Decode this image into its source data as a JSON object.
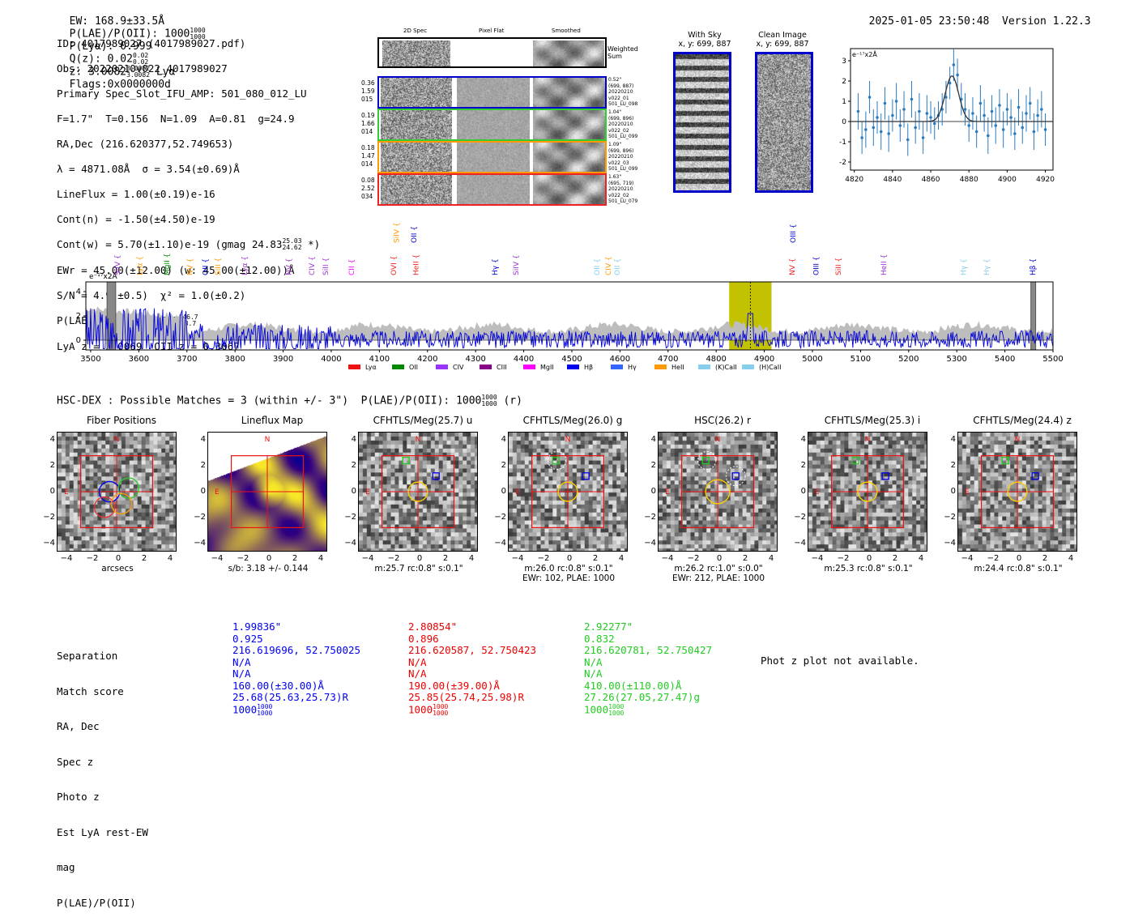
{
  "header": {
    "ew": "EW: 168.9±33.5Å",
    "plae_label": "P(LAE)/P(OII): 1000",
    "plae_hi": "1000",
    "plae_lo": "1000",
    "plya": "P(Lyα): 0.999",
    "qz_label": "Q(z): 0.02",
    "qz_hi": "0.02",
    "qz_lo": "0.02",
    "z_label": "z: 3.0082",
    "z_hi": "3.0082",
    "z_lo": "3.0082",
    "line": "Lyα",
    "flags": "Flags:0x0000000d",
    "timestamp": "2025-01-05 23:50:48",
    "version": "Version 1.22.3"
  },
  "info": {
    "id": "ID: 4017989027 (4017989027.pdf)",
    "obs": "Obs: 20220210v022_4017989027",
    "primary": "Primary Spec_Slot_IFU_AMP: 501_080_012_LU",
    "params": "F=1.7\"  T=0.156  N=1.09  A=0.81  g=24.9",
    "radec": "RA,Dec (216.620377,52.749653)",
    "lambda": "λ = 4871.08Å  σ = 3.54(±0.69)Å",
    "lineflux": "LineFlux = 1.00(±0.19)e-16",
    "contn": "Cont(n) = -1.50(±4.50)e-19",
    "contw": "Cont(w) = 5.70(±1.10)e-19 (gmag 24.83",
    "contw_hi": "25.03",
    "contw_lo": "24.62",
    "contw_end": " *)",
    "ewr": "EWr = 45.00(±12.00) (w: 45.00(±12.00))Å",
    "sn": "S/N = 4.9(±0.5)  χ² = 1.0(±0.2)",
    "plae": "P(LAE)/P(OII): 136.3",
    "plae_hi": "646.7",
    "plae_lo": "43.7",
    "lyaz": "LyA z = 3.0069  OII z = 0.3067"
  },
  "cutouts": {
    "col_labels": [
      "2D Spec",
      "Pixel Flat",
      "Smoothed"
    ],
    "weighted": [
      "Weighted",
      "Sum"
    ],
    "rows": [
      {
        "left": [
          "0.36",
          "1.59",
          "015"
        ],
        "right": [
          "0.52\"",
          "(699, 887)",
          "20220210",
          "v022_01",
          "501_LU_098"
        ],
        "color": "#0000cc"
      },
      {
        "left": [
          "0.19",
          "1.66",
          "014"
        ],
        "right": [
          "1.04\"",
          "(699, 896)",
          "20220210",
          "v022_02",
          "501_LU_099"
        ],
        "color": "#33cc33"
      },
      {
        "left": [
          "0.18",
          "1.47",
          "014"
        ],
        "right": [
          "1.09\"",
          "(699, 896)",
          "20220210",
          "v022_03",
          "501_LU_099"
        ],
        "color": "#ff9900"
      },
      {
        "left": [
          "0.08",
          "2.52",
          "034"
        ],
        "right": [
          "1.63\"",
          "(695, 719)",
          "20220210",
          "v022_02",
          "501_LU_079"
        ],
        "color": "#ee2222"
      }
    ],
    "with_sky": {
      "title": "With Sky",
      "coords": "x, y: 699, 887"
    },
    "clean": {
      "title": "Clean Image",
      "coords": "x, y: 699, 887"
    }
  },
  "zoom_chart": {
    "type": "scatter",
    "unit": "e⁻¹⁷x2Å",
    "xlim": [
      4818,
      4924
    ],
    "ylim": [
      -2.4,
      3.6
    ],
    "xticks": [
      4820,
      4840,
      4860,
      4880,
      4900,
      4920
    ],
    "yticks": [
      3,
      2,
      1,
      0,
      -1,
      -2
    ],
    "fit": {
      "center": 4871.1,
      "sigma": 3.54,
      "amp": 2.25
    },
    "x": [
      4822,
      4824,
      4826,
      4828,
      4830,
      4832,
      4834,
      4836,
      4838,
      4840,
      4842,
      4844,
      4846,
      4848,
      4850,
      4852,
      4854,
      4856,
      4858,
      4860,
      4862,
      4864,
      4866,
      4868,
      4870,
      4872,
      4874,
      4876,
      4878,
      4880,
      4882,
      4884,
      4886,
      4888,
      4890,
      4892,
      4894,
      4896,
      4898,
      4900,
      4902,
      4904,
      4906,
      4908,
      4910,
      4912,
      4914,
      4916,
      4918,
      4920
    ],
    "y": [
      0.5,
      -0.8,
      -0.4,
      1.2,
      -0.3,
      0.2,
      -0.5,
      0.9,
      -0.6,
      0.3,
      1.0,
      -0.2,
      0.6,
      -0.9,
      1.1,
      -0.3,
      0.5,
      -0.8,
      0.4,
      0.2,
      -0.1,
      0.3,
      0.6,
      1.2,
      1.9,
      2.8,
      2.3,
      1.1,
      0.6,
      -0.2,
      0.4,
      -0.5,
      0.9,
      0.3,
      -0.7,
      0.5,
      -0.2,
      0.8,
      -0.4,
      0.6,
      0.2,
      -0.6,
      0.7,
      -0.3,
      0.4,
      0.9,
      -0.5,
      0.3,
      0.6,
      -0.4
    ],
    "err": [
      0.9,
      0.8,
      0.9,
      0.8,
      0.9,
      0.8,
      0.9,
      0.8,
      0.9,
      0.8,
      0.9,
      0.8,
      0.9,
      0.8,
      0.9,
      0.8,
      0.9,
      0.8,
      0.9,
      0.8,
      0.8,
      0.7,
      0.8,
      0.8,
      0.8,
      0.8,
      0.8,
      0.8,
      0.8,
      0.8,
      0.8,
      0.8,
      0.9,
      0.8,
      0.9,
      0.8,
      0.9,
      0.8,
      0.9,
      0.8,
      0.9,
      0.8,
      0.9,
      0.8,
      0.9,
      0.8,
      0.9,
      0.8,
      0.9,
      0.8
    ]
  },
  "spectrum": {
    "type": "line",
    "unit": "e⁻¹⁷x2Å",
    "xlim": [
      3490,
      5500
    ],
    "ylim": [
      -0.8,
      4.8
    ],
    "xticks": [
      3500,
      3600,
      3700,
      3800,
      3900,
      4000,
      4100,
      4200,
      4300,
      4400,
      4500,
      4600,
      4700,
      4800,
      4900,
      5000,
      5100,
      5200,
      5300,
      5400,
      5500
    ],
    "yticks": [
      4,
      2,
      0
    ],
    "highlight": {
      "from": 4827,
      "to": 4915
    },
    "line_at": 4871,
    "hatched": [
      {
        "from": 3534,
        "to": 3552
      },
      {
        "from": 5454,
        "to": 5464
      }
    ],
    "line_labels": [
      {
        "name": "SiIV",
        "x": 3556,
        "row": 1,
        "color": "#9933cc"
      },
      {
        "name": "Lyα",
        "x": 3602,
        "row": 1,
        "color": "#ff9900"
      },
      {
        "name": "MgII",
        "x": 3658,
        "row": 1,
        "color": "#008800"
      },
      {
        "name": "NV",
        "x": 3706,
        "row": 1,
        "color": "#ff9900"
      },
      {
        "name": "OII",
        "x": 3738,
        "row": 1,
        "color": "#0000cc"
      },
      {
        "name": "SiII",
        "x": 3764,
        "row": 1,
        "color": "#ff9900"
      },
      {
        "name": "Lyα",
        "x": 3820,
        "row": 1,
        "color": "#9933cc"
      },
      {
        "name": "NV",
        "x": 3912,
        "row": 1,
        "color": "#9933cc"
      },
      {
        "name": "CIV",
        "x": 3960,
        "row": 1,
        "color": "#9933cc"
      },
      {
        "name": "SiII",
        "x": 3988,
        "row": 1,
        "color": "#9933cc"
      },
      {
        "name": "CII",
        "x": 4042,
        "row": 1,
        "color": "#ff00ff"
      },
      {
        "name": "OVI",
        "x": 4130,
        "row": 1,
        "color": "#ee2222"
      },
      {
        "name": "SiIV",
        "x": 4136,
        "row": 2,
        "color": "#ff9900"
      },
      {
        "name": "OII",
        "x": 4172,
        "row": 2,
        "color": "#0000cc"
      },
      {
        "name": "HeII",
        "x": 4176,
        "row": 1,
        "color": "#ee2222"
      },
      {
        "name": "Hγ",
        "x": 4340,
        "row": 1,
        "color": "#0000cc"
      },
      {
        "name": "SiIV",
        "x": 4384,
        "row": 1,
        "color": "#9933cc"
      },
      {
        "name": "OII",
        "x": 4552,
        "row": 1,
        "color": "#87ceeb"
      },
      {
        "name": "CIV",
        "x": 4576,
        "row": 1,
        "color": "#ff9900"
      },
      {
        "name": "OII",
        "x": 4594,
        "row": 1,
        "color": "#87ceeb"
      },
      {
        "name": "OIII",
        "x": 4960,
        "row": 2,
        "color": "#0000cc"
      },
      {
        "name": "NV",
        "x": 4958,
        "row": 1,
        "color": "#ee2222"
      },
      {
        "name": "OIII",
        "x": 5008,
        "row": 1,
        "color": "#0000cc"
      },
      {
        "name": "SiII",
        "x": 5054,
        "row": 1,
        "color": "#ee2222"
      },
      {
        "name": "HeII",
        "x": 5148,
        "row": 1,
        "color": "#9933cc"
      },
      {
        "name": "Hγ",
        "x": 5314,
        "row": 1,
        "color": "#87ceeb"
      },
      {
        "name": "Hγ",
        "x": 5362,
        "row": 1,
        "color": "#87ceeb"
      },
      {
        "name": "Hβ",
        "x": 5458,
        "row": 1,
        "color": "#0000cc"
      }
    ],
    "legend": [
      {
        "label": "Lyα",
        "color": "#ee1111"
      },
      {
        "label": "OII",
        "color": "#008800"
      },
      {
        "label": "CIV",
        "color": "#9933ff"
      },
      {
        "label": "CIII",
        "color": "#880088"
      },
      {
        "label": "MgII",
        "color": "#ff00ff"
      },
      {
        "label": "Hβ",
        "color": "#0000ee"
      },
      {
        "label": "Hγ",
        "color": "#3366ff"
      },
      {
        "label": "HeII",
        "color": "#ff9900"
      },
      {
        "label": "(K)CaII",
        "color": "#87ceeb"
      },
      {
        "label": "(H)CaII",
        "color": "#87ceeb"
      }
    ]
  },
  "hsc": {
    "summary": "HSC-DEX : Possible Matches = 3 (within +/- 3\")  P(LAE)/P(OII): 1000",
    "summary_hi": "1000",
    "summary_lo": "1000",
    "summary_end": " (r)",
    "panels": [
      {
        "title": "Fiber Positions",
        "cap1": "arcsecs",
        "cap2": ""
      },
      {
        "title": "Lineflux Map",
        "cap1": "s/b: 3.18 +/- 0.144",
        "cap2": ""
      },
      {
        "title": "CFHTLS/Meg(25.7) u",
        "cap1": "m:25.7 rc:0.8\"  s:0.1\"",
        "cap2": ""
      },
      {
        "title": "CFHTLS/Meg(26.0) g",
        "cap1": "m:26.0 rc:0.8\"  s:0.1\"",
        "cap2": "EWr: 102, PLAE: 1000"
      },
      {
        "title": "HSC(26.2) r",
        "cap1": "m:26.2 rc:1.0\"  s:0.0\"",
        "cap2": "EWr: 212, PLAE: 1000"
      },
      {
        "title": "CFHTLS/Meg(25.3) i",
        "cap1": "m:25.3 rc:0.8\"  s:0.1\"",
        "cap2": ""
      },
      {
        "title": "CFHTLS/Meg(24.4) z",
        "cap1": "m:24.4 rc:0.8\"  s:0.1\"",
        "cap2": ""
      }
    ],
    "axis_ticks_x": [
      "−4",
      "−2",
      "0",
      "2",
      "4"
    ],
    "axis_ticks_y": [
      "4",
      "2",
      "0",
      "−2",
      "−4"
    ],
    "n_label": "N",
    "e_label": "E"
  },
  "matches": {
    "labels": [
      "Separation",
      "Match score",
      "RA, Dec",
      "Spec z",
      "Photo z",
      "Est LyA rest-EW",
      "mag",
      "P(LAE)/P(OII)"
    ],
    "cols": [
      {
        "color": "#0000ee",
        "vals": [
          "1.99836\"",
          "0.925",
          "216.619696, 52.750025",
          "N/A",
          "N/A",
          "160.00(±30.00)Å",
          "25.68(25.63,25.73)R",
          "1000"
        ],
        "hi": "1000",
        "lo": "1000"
      },
      {
        "color": "#ee0000",
        "vals": [
          "2.80854\"",
          "0.896",
          "216.620587, 52.750423",
          "N/A",
          "N/A",
          "190.00(±39.00)Å",
          "25.85(25.74,25.98)R",
          "1000"
        ],
        "hi": "1000",
        "lo": "1000"
      },
      {
        "color": "#22cc22",
        "vals": [
          "2.92277\"",
          "0.832",
          "216.620781, 52.750427",
          "N/A",
          "N/A",
          "410.00(±110.00)Å",
          "27.26(27.05,27.47)g",
          "1000"
        ],
        "hi": "1000",
        "lo": "1000"
      }
    ],
    "photz_note": "Phot z plot not available."
  }
}
